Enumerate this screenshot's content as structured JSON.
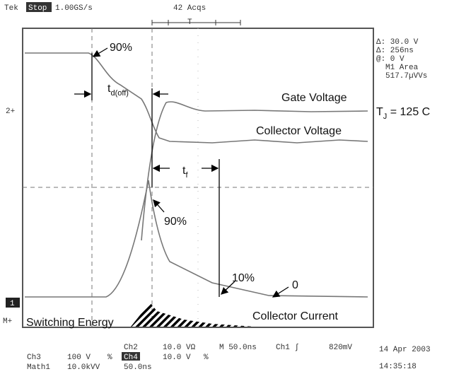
{
  "header": {
    "brand": "Tek",
    "state": "Stop",
    "rate": "1.00GS/s",
    "acqs": "42 Acqs",
    "trigger": "T"
  },
  "readout": [
    "Δ: 30.0 V",
    "Δ: 256ns",
    "@: 0 V",
    "M1 Area",
    "517.7µVVs"
  ],
  "markers": {
    "ch2": "2+",
    "ch1": "1",
    "math": "M+"
  },
  "annotations": {
    "top_90": "90%",
    "td": {
      "main": "t",
      "sub": "d(off)"
    },
    "gate": "Gate Voltage",
    "tj": {
      "main": "T",
      "sub": "J",
      "rest": " = 125  C"
    },
    "collector_voltage": "Collector Voltage",
    "tf": {
      "main": "t",
      "sub": "f"
    },
    "mid_90": "90%",
    "pct_10": "10%",
    "zero": "0",
    "collector_current": "Collector Current",
    "energy": "Switching Energy"
  },
  "footer": {
    "row1": [
      "Ch2",
      "10.0 VΩ",
      "M 50.0ns",
      "Ch1 ∫",
      "820mV"
    ],
    "row2": [
      "Ch3",
      "100 V",
      "%",
      "Ch4",
      "10.0 V",
      "%"
    ],
    "row3": [
      "Math1",
      "10.0kVV",
      "50.0ns"
    ],
    "date": "14 Apr 2003",
    "time": "14:35:18"
  }
}
